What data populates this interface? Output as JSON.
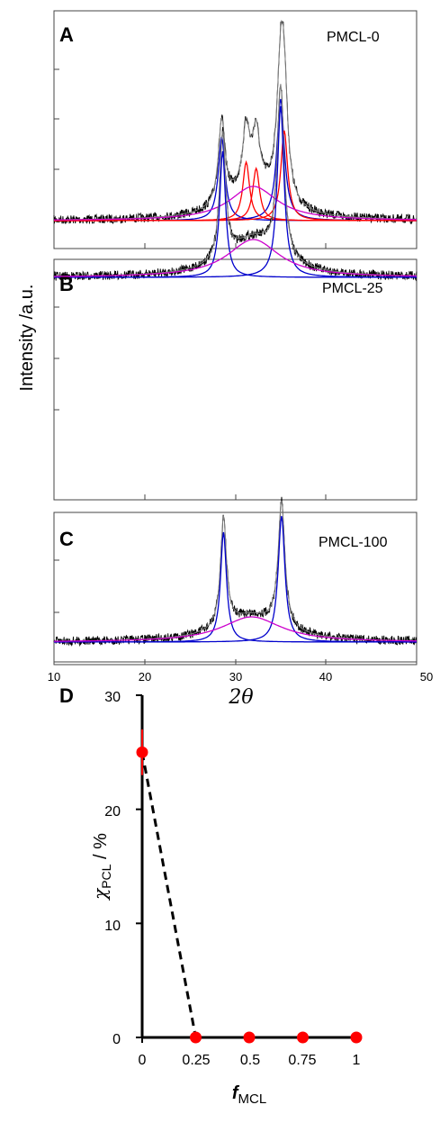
{
  "chart_data": [
    {
      "type": "line",
      "panel": "A",
      "label": "PMCL-0",
      "xlim": [
        10,
        50
      ],
      "series": [
        {
          "color": "#000000",
          "kind": "measured"
        },
        {
          "color": "#808080",
          "kind": "fit-sum"
        },
        {
          "color": "#0000cc",
          "kind": "crystalline-peak",
          "centers": [
            28.5,
            35.0
          ]
        },
        {
          "color": "#ff0000",
          "kind": "crystalline-peak",
          "centers": [
            31.2,
            32.3,
            35.4
          ]
        },
        {
          "color": "#cc00cc",
          "kind": "amorphous-halo",
          "centers": [
            32.0
          ]
        }
      ]
    },
    {
      "type": "line",
      "panel": "B",
      "label": "PMCL-25",
      "xlim": [
        10,
        50
      ],
      "series": [
        {
          "color": "#000000",
          "kind": "measured"
        },
        {
          "color": "#808080",
          "kind": "fit-sum"
        },
        {
          "color": "#0000cc",
          "kind": "crystalline-peak",
          "centers": [
            28.6,
            35.0
          ]
        },
        {
          "color": "#cc00cc",
          "kind": "amorphous-halo",
          "centers": [
            32.0
          ]
        }
      ]
    },
    {
      "type": "line",
      "panel": "C",
      "label": "PMCL-100",
      "xlim": [
        10,
        50
      ],
      "xticks": [
        "10",
        "20",
        "30",
        "40",
        "50"
      ],
      "xlabel": "2θ",
      "series": [
        {
          "color": "#000000",
          "kind": "measured"
        },
        {
          "color": "#808080",
          "kind": "fit-sum"
        },
        {
          "color": "#0000cc",
          "kind": "crystalline-peak",
          "centers": [
            28.7,
            35.1
          ]
        },
        {
          "color": "#cc00cc",
          "kind": "amorphous-halo",
          "centers": [
            31.8
          ]
        }
      ]
    },
    {
      "type": "scatter",
      "panel": "D",
      "x": [
        0,
        0.25,
        0.5,
        0.75,
        1
      ],
      "y": [
        25,
        0,
        0,
        0,
        0
      ],
      "xticks": [
        "0",
        "0.25",
        "0.5",
        "0.75",
        "1"
      ],
      "yticks": [
        "0",
        "10",
        "20",
        "30"
      ],
      "xlim": [
        0,
        1
      ],
      "ylim": [
        0,
        30
      ],
      "xlabel_main": "f",
      "xlabel_sub": "MCL",
      "ylabel_main": "χ",
      "ylabel_sub": "PCL",
      "ylabel_unit": " / %",
      "marker_color": "#ff0000",
      "trend_line": {
        "from": [
          0,
          25
        ],
        "to": [
          0.25,
          0
        ]
      }
    }
  ],
  "shared_ylabel": "Intensity /a.u."
}
